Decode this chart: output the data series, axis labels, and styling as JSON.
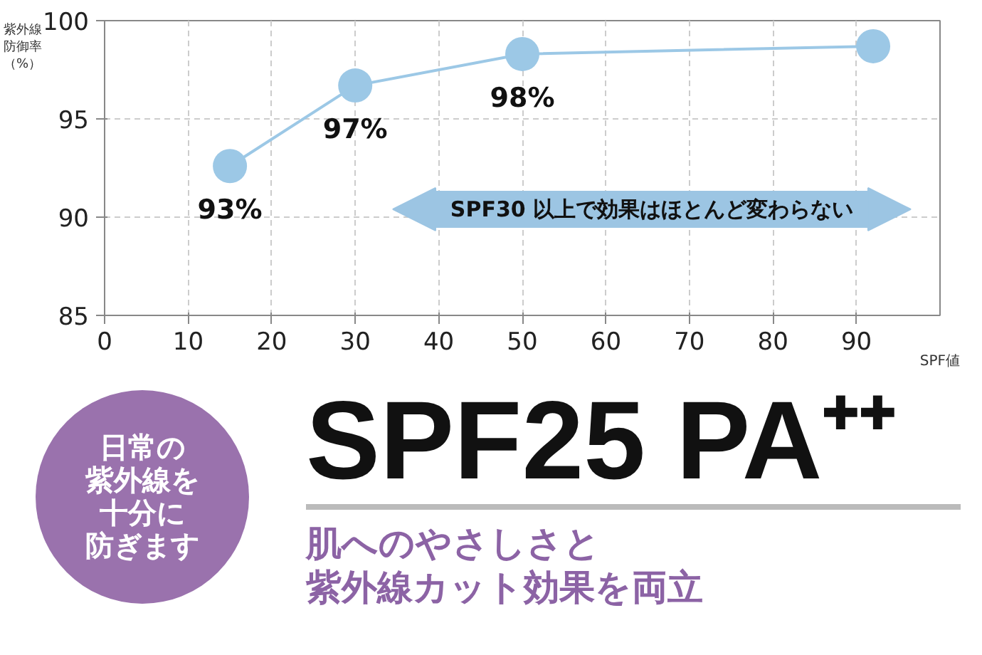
{
  "chart_data": {
    "type": "line",
    "ylabel": "紫外線防御率（%）",
    "xlabel": "SPF値",
    "x": [
      15,
      30,
      50,
      92
    ],
    "series": [
      {
        "color": "#9cc8e6",
        "values": [
          92.6,
          96.7,
          98.3,
          98.7
        ],
        "value_labels": [
          "93%",
          "97%",
          "98%",
          null
        ]
      }
    ],
    "marker": "circle",
    "line_style": "solid",
    "grid": true,
    "xlim": [
      0,
      100
    ],
    "ylim": [
      85,
      100
    ],
    "xticks": [
      0,
      10,
      20,
      30,
      40,
      50,
      60,
      70,
      80,
      90
    ],
    "yticks": [
      85,
      90,
      95,
      100
    ],
    "annotations": [
      "SPF30 以上で効果はほとんど変わらない",
      "日常の",
      "紫外線を",
      "十分に",
      "防ぎます",
      "SPF25 PA⁺⁺",
      "肌へのやさしさと",
      "紫外線カット効果を両立"
    ]
  }
}
